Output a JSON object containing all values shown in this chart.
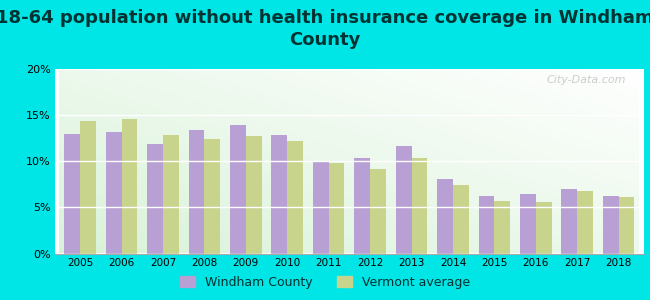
{
  "title": "18-64 population without health insurance coverage in Windham\nCounty",
  "years": [
    2005,
    2006,
    2007,
    2008,
    2009,
    2010,
    2011,
    2012,
    2013,
    2014,
    2015,
    2016,
    2017,
    2018
  ],
  "windham": [
    13.0,
    13.2,
    11.9,
    13.4,
    13.9,
    12.8,
    10.0,
    10.4,
    11.6,
    8.1,
    6.2,
    6.5,
    7.0,
    6.2
  ],
  "vermont": [
    14.4,
    14.6,
    12.8,
    12.4,
    12.7,
    12.2,
    9.8,
    9.2,
    10.4,
    7.4,
    5.7,
    5.6,
    6.8,
    6.1
  ],
  "windham_color": "#b89fd4",
  "vermont_color": "#c8d48c",
  "background_cyan": "#00e5e5",
  "ylim": [
    0,
    20
  ],
  "yticks": [
    0,
    5,
    10,
    15,
    20
  ],
  "ytick_labels": [
    "0%",
    "5%",
    "10%",
    "15%",
    "20%"
  ],
  "legend_windham": "Windham County",
  "legend_vermont": "Vermont average",
  "title_fontsize": 13,
  "bar_width": 0.38,
  "watermark": "City-Data.com"
}
